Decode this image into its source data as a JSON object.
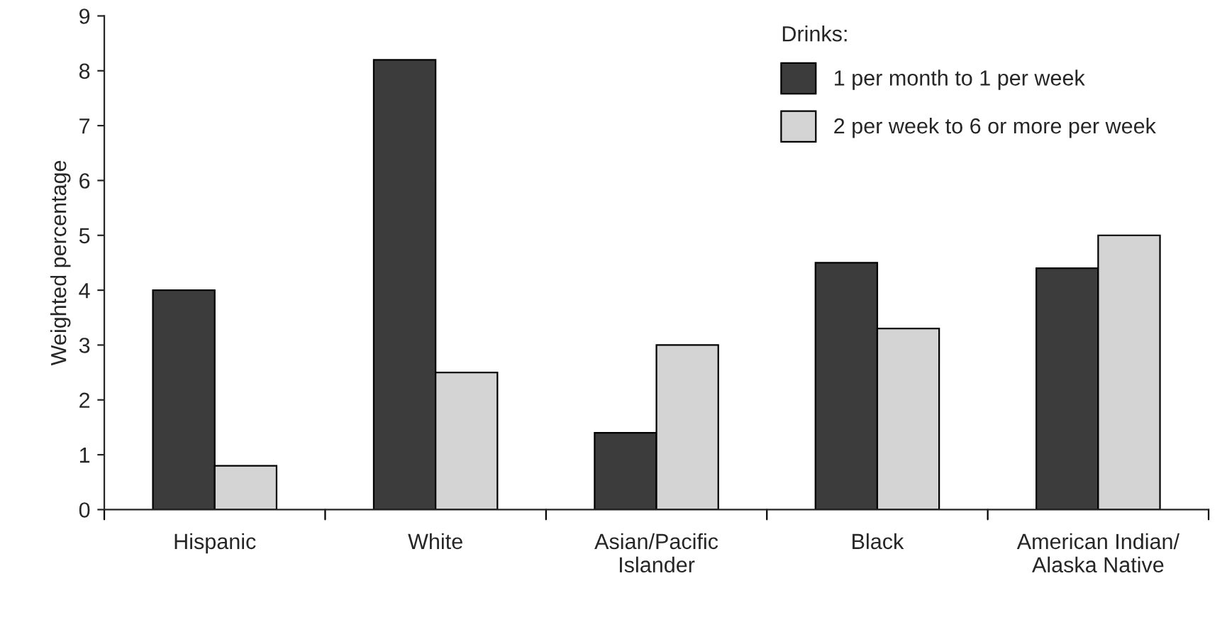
{
  "chart_data": {
    "type": "bar",
    "ylabel": "Weighted percentage",
    "legend_title": "Drinks:",
    "categories": [
      "Hispanic",
      "White",
      "Asian/Pacific\nIslander",
      "Black",
      "American Indian/\nAlaska Native"
    ],
    "series": [
      {
        "name": "1 per month to 1 per week",
        "color": "#3c3c3c",
        "values": [
          4.0,
          8.2,
          1.4,
          4.5,
          4.4
        ]
      },
      {
        "name": "2 per week to 6 or more per week",
        "color": "#d4d4d4",
        "values": [
          0.8,
          2.5,
          3.0,
          3.3,
          5.0
        ]
      }
    ],
    "ylim": [
      0,
      9
    ],
    "yticks": [
      0,
      1,
      2,
      3,
      4,
      5,
      6,
      7,
      8,
      9
    ],
    "grid": false,
    "legend": "top right"
  }
}
